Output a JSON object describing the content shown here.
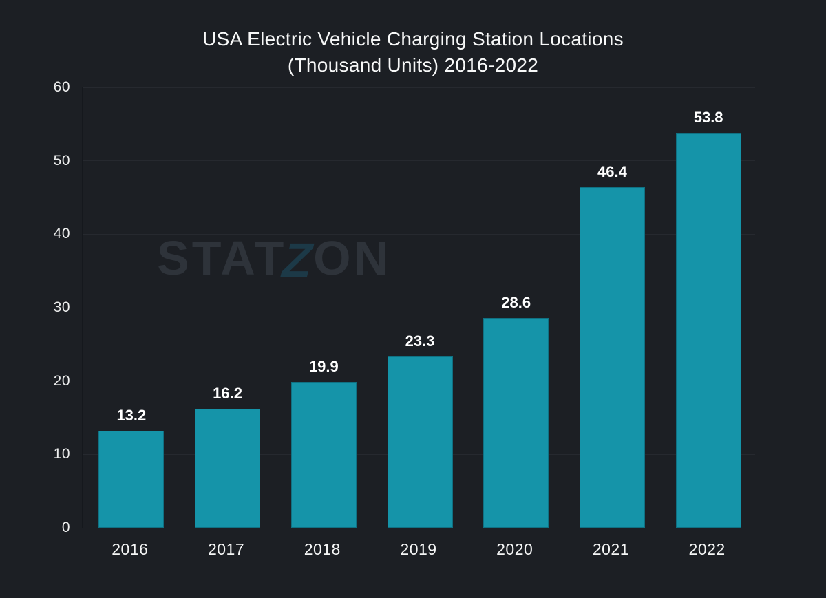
{
  "figure": {
    "title_line1": "USA Electric Vehicle Charging Station Locations",
    "title_line2": "(Thousand Units) 2016-2022",
    "watermark_pre": "STAT",
    "watermark_z": "Z",
    "watermark_post": "ON"
  },
  "colors": {
    "background": "#1c1f24",
    "bar": "#1594a9",
    "gridline": "#26292f",
    "axis_line": "#15181d",
    "title_text": "#f7f8f8",
    "label_text": "#ffffff",
    "tick_text": "#edeeee",
    "watermark_text": "#2e333a",
    "watermark_z": "#1c3947"
  },
  "chart_data": {
    "type": "bar",
    "title": "USA Electric Vehicle Charging Station Locations (Thousand Units) 2016-2022",
    "categories": [
      "2016",
      "2017",
      "2018",
      "2019",
      "2020",
      "2021",
      "2022"
    ],
    "values": [
      13.2,
      16.2,
      19.9,
      23.3,
      28.6,
      46.4,
      53.8
    ],
    "value_labels": [
      "13.2",
      "16.2",
      "19.9",
      "23.3",
      "28.6",
      "46.4",
      "53.8"
    ],
    "xlabel": "",
    "ylabel": "",
    "ylim": [
      0,
      60
    ],
    "yticks": [
      0,
      10,
      20,
      30,
      40,
      50,
      60
    ],
    "grid": true,
    "legend": false,
    "bar_color": "#1594a9",
    "watermark": "STATZON"
  }
}
